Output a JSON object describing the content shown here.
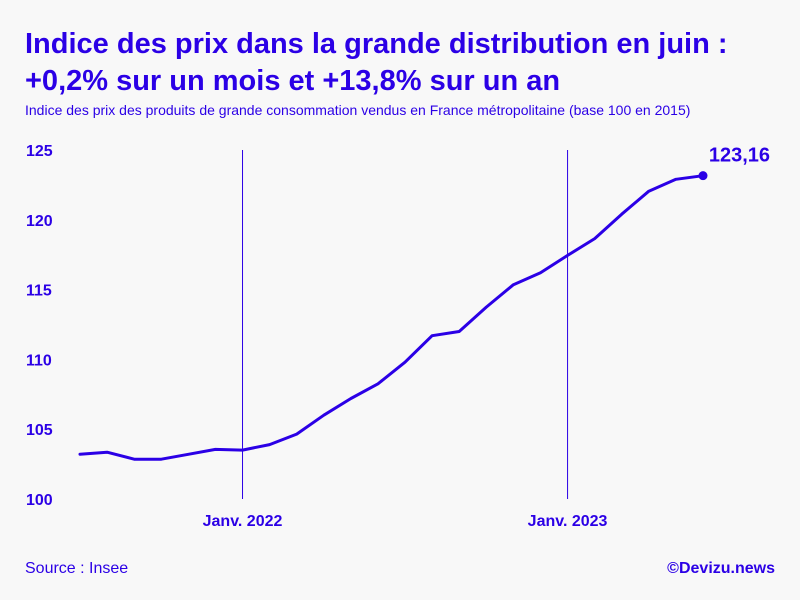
{
  "header": {
    "title_line1": "Indice des prix dans la grande distribution en juin :",
    "title_line2": "+0,2% sur un mois et +13,8% sur un an",
    "subtitle": "Indice des prix des produits de grande consommation vendus en France métropolitaine (base 100 en 2015)"
  },
  "footer": {
    "source": "Source : Insee",
    "brand": "©Devizu.news"
  },
  "colors": {
    "accent": "#2b00e6",
    "background": "#f8f8f8"
  },
  "chart_data": {
    "type": "line",
    "title": "",
    "xlabel": "",
    "ylabel": "",
    "ylim": [
      100,
      125
    ],
    "y_ticks": [
      "100",
      "105",
      "110",
      "115",
      "120",
      "125"
    ],
    "x_tick_labels": [
      {
        "label": "Janv. 2022",
        "index": 6
      },
      {
        "label": "Janv. 2023",
        "index": 18
      }
    ],
    "grid": false,
    "series": [
      {
        "values": [
          103.2,
          103.35,
          102.85,
          102.85,
          103.2,
          103.55,
          103.5,
          103.9,
          104.65,
          106.0,
          107.2,
          108.25,
          109.8,
          111.7,
          112.0,
          113.75,
          115.35,
          116.2,
          117.45,
          118.65,
          120.4,
          122.05,
          122.9,
          123.16
        ]
      }
    ],
    "end_label": "123,16"
  }
}
